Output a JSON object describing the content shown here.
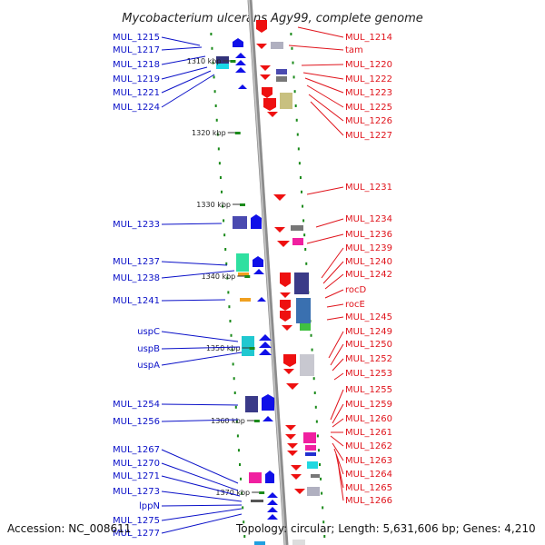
{
  "title": "Mycobacterium ulcerans Agy99, complete genome",
  "accession": "Accession: NC_008611",
  "summary": "Topology: circular; Length: 5,631,606 bp; Genes: 4,210",
  "colors": {
    "left_label": "#0a10c8",
    "right_label": "#e0141c",
    "backbone": "#8c8c8c",
    "tick": "#1a8a1a"
  },
  "scale_marks": [
    "1310 kbp",
    "1320 kbp",
    "1330 kbp",
    "1340 kbp",
    "1350 kbp",
    "1360 kbp",
    "1370 kbp"
  ],
  "left_labels": [
    "MUL_1215",
    "MUL_1217",
    "MUL_1218",
    "MUL_1219",
    "MUL_1221",
    "MUL_1224",
    "MUL_1233",
    "MUL_1237",
    "MUL_1238",
    "MUL_1241",
    "uspC",
    "uspB",
    "uspA",
    "MUL_1254",
    "MUL_1256",
    "MUL_1267",
    "MUL_1270",
    "MUL_1271",
    "MUL_1273",
    "lppN",
    "MUL_1275",
    "MUL_1277"
  ],
  "right_labels": [
    "MUL_1214",
    "tam",
    "MUL_1220",
    "MUL_1222",
    "MUL_1223",
    "MUL_1225",
    "MUL_1226",
    "MUL_1227",
    "MUL_1231",
    "MUL_1234",
    "MUL_1236",
    "MUL_1239",
    "MUL_1240",
    "MUL_1242",
    "rocD",
    "rocE",
    "MUL_1245",
    "MUL_1249",
    "MUL_1250",
    "MUL_1252",
    "MUL_1253",
    "MUL_1255",
    "MUL_1259",
    "MUL_1260",
    "MUL_1261",
    "MUL_1262",
    "MUL_1263",
    "MUL_1264",
    "MUL_1265",
    "MUL_1266"
  ]
}
